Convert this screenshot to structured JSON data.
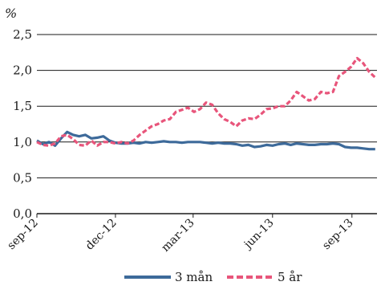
{
  "chart_data": {
    "type": "line",
    "ylabel": "%",
    "ylim": [
      0,
      2.5
    ],
    "yticks": [
      "0,0",
      "0,5",
      "1,0",
      "1,5",
      "2,0",
      "2,5"
    ],
    "ytick_values": [
      0,
      0.5,
      1.0,
      1.5,
      2.0,
      2.5
    ],
    "xlim": [
      "2012-09-01",
      "2013-09-30"
    ],
    "xticks": [
      {
        "label": "sep-12",
        "date": "2012-09-01"
      },
      {
        "label": "dec-12",
        "date": "2012-12-01"
      },
      {
        "label": "mar-13",
        "date": "2013-03-01"
      },
      {
        "label": "jun-13",
        "date": "2013-06-01"
      },
      {
        "label": "sep-13",
        "date": "2013-09-01"
      }
    ],
    "grid": "horizontal",
    "legend_position": "bottom",
    "series": [
      {
        "name": "3 mån",
        "color": "#3d6a9a",
        "style": "solid",
        "points": [
          [
            "2012-09-01",
            1.02
          ],
          [
            "2012-09-08",
            0.97
          ],
          [
            "2012-09-15",
            1.0
          ],
          [
            "2012-09-22",
            0.95
          ],
          [
            "2012-09-29",
            1.05
          ],
          [
            "2012-10-06",
            1.14
          ],
          [
            "2012-10-13",
            1.1
          ],
          [
            "2012-10-20",
            1.08
          ],
          [
            "2012-10-27",
            1.1
          ],
          [
            "2012-11-03",
            1.05
          ],
          [
            "2012-11-10",
            1.06
          ],
          [
            "2012-11-17",
            1.08
          ],
          [
            "2012-11-24",
            1.02
          ],
          [
            "2012-12-01",
            0.99
          ],
          [
            "2012-12-08",
            0.98
          ],
          [
            "2012-12-15",
            0.98
          ],
          [
            "2012-12-22",
            0.99
          ],
          [
            "2012-12-29",
            0.98
          ],
          [
            "2013-01-05",
            1.0
          ],
          [
            "2013-01-12",
            0.99
          ],
          [
            "2013-01-19",
            1.0
          ],
          [
            "2013-01-26",
            1.01
          ],
          [
            "2013-02-02",
            1.0
          ],
          [
            "2013-02-09",
            1.0
          ],
          [
            "2013-02-16",
            0.99
          ],
          [
            "2013-02-23",
            1.0
          ],
          [
            "2013-03-02",
            1.0
          ],
          [
            "2013-03-09",
            1.0
          ],
          [
            "2013-03-16",
            0.99
          ],
          [
            "2013-03-23",
            0.98
          ],
          [
            "2013-03-30",
            0.99
          ],
          [
            "2013-04-06",
            0.98
          ],
          [
            "2013-04-13",
            0.98
          ],
          [
            "2013-04-20",
            0.97
          ],
          [
            "2013-04-27",
            0.95
          ],
          [
            "2013-05-04",
            0.96
          ],
          [
            "2013-05-11",
            0.93
          ],
          [
            "2013-05-18",
            0.94
          ],
          [
            "2013-05-25",
            0.96
          ],
          [
            "2013-06-01",
            0.95
          ],
          [
            "2013-06-08",
            0.97
          ],
          [
            "2013-06-15",
            0.98
          ],
          [
            "2013-06-22",
            0.96
          ],
          [
            "2013-06-29",
            0.98
          ],
          [
            "2013-07-06",
            0.97
          ],
          [
            "2013-07-13",
            0.96
          ],
          [
            "2013-07-20",
            0.96
          ],
          [
            "2013-07-27",
            0.97
          ],
          [
            "2013-08-03",
            0.97
          ],
          [
            "2013-08-10",
            0.98
          ],
          [
            "2013-08-17",
            0.97
          ],
          [
            "2013-08-24",
            0.93
          ],
          [
            "2013-08-31",
            0.92
          ],
          [
            "2013-09-07",
            0.92
          ],
          [
            "2013-09-14",
            0.91
          ],
          [
            "2013-09-21",
            0.9
          ],
          [
            "2013-09-28",
            0.9
          ]
        ]
      },
      {
        "name": "5 år",
        "color": "#e8557b",
        "style": "dashed",
        "points": [
          [
            "2012-09-01",
            1.0
          ],
          [
            "2012-09-08",
            0.96
          ],
          [
            "2012-09-15",
            0.95
          ],
          [
            "2012-09-22",
            0.98
          ],
          [
            "2012-09-29",
            1.08
          ],
          [
            "2012-10-06",
            1.1
          ],
          [
            "2012-10-13",
            1.04
          ],
          [
            "2012-10-20",
            0.96
          ],
          [
            "2012-10-27",
            0.95
          ],
          [
            "2012-11-03",
            1.02
          ],
          [
            "2012-11-10",
            0.95
          ],
          [
            "2012-11-17",
            1.0
          ],
          [
            "2012-11-24",
            1.0
          ],
          [
            "2012-12-01",
            0.98
          ],
          [
            "2012-12-08",
            1.0
          ],
          [
            "2012-12-15",
            0.98
          ],
          [
            "2012-12-22",
            1.02
          ],
          [
            "2012-12-29",
            1.1
          ],
          [
            "2013-01-05",
            1.16
          ],
          [
            "2013-01-12",
            1.22
          ],
          [
            "2013-01-19",
            1.25
          ],
          [
            "2013-01-26",
            1.3
          ],
          [
            "2013-02-02",
            1.32
          ],
          [
            "2013-02-09",
            1.42
          ],
          [
            "2013-02-16",
            1.45
          ],
          [
            "2013-02-23",
            1.48
          ],
          [
            "2013-03-02",
            1.42
          ],
          [
            "2013-03-09",
            1.46
          ],
          [
            "2013-03-16",
            1.55
          ],
          [
            "2013-03-23",
            1.52
          ],
          [
            "2013-03-30",
            1.4
          ],
          [
            "2013-04-06",
            1.32
          ],
          [
            "2013-04-13",
            1.28
          ],
          [
            "2013-04-20",
            1.22
          ],
          [
            "2013-04-27",
            1.3
          ],
          [
            "2013-05-04",
            1.33
          ],
          [
            "2013-05-11",
            1.32
          ],
          [
            "2013-05-18",
            1.38
          ],
          [
            "2013-05-25",
            1.46
          ],
          [
            "2013-06-01",
            1.47
          ],
          [
            "2013-06-08",
            1.5
          ],
          [
            "2013-06-15",
            1.5
          ],
          [
            "2013-06-22",
            1.58
          ],
          [
            "2013-06-29",
            1.7
          ],
          [
            "2013-07-06",
            1.64
          ],
          [
            "2013-07-13",
            1.58
          ],
          [
            "2013-07-20",
            1.6
          ],
          [
            "2013-07-27",
            1.7
          ],
          [
            "2013-08-03",
            1.68
          ],
          [
            "2013-08-10",
            1.7
          ],
          [
            "2013-08-17",
            1.92
          ],
          [
            "2013-08-24",
            1.98
          ],
          [
            "2013-08-31",
            2.05
          ],
          [
            "2013-09-07",
            2.17
          ],
          [
            "2013-09-14",
            2.1
          ],
          [
            "2013-09-21",
            1.98
          ],
          [
            "2013-09-28",
            1.9
          ]
        ]
      }
    ]
  }
}
